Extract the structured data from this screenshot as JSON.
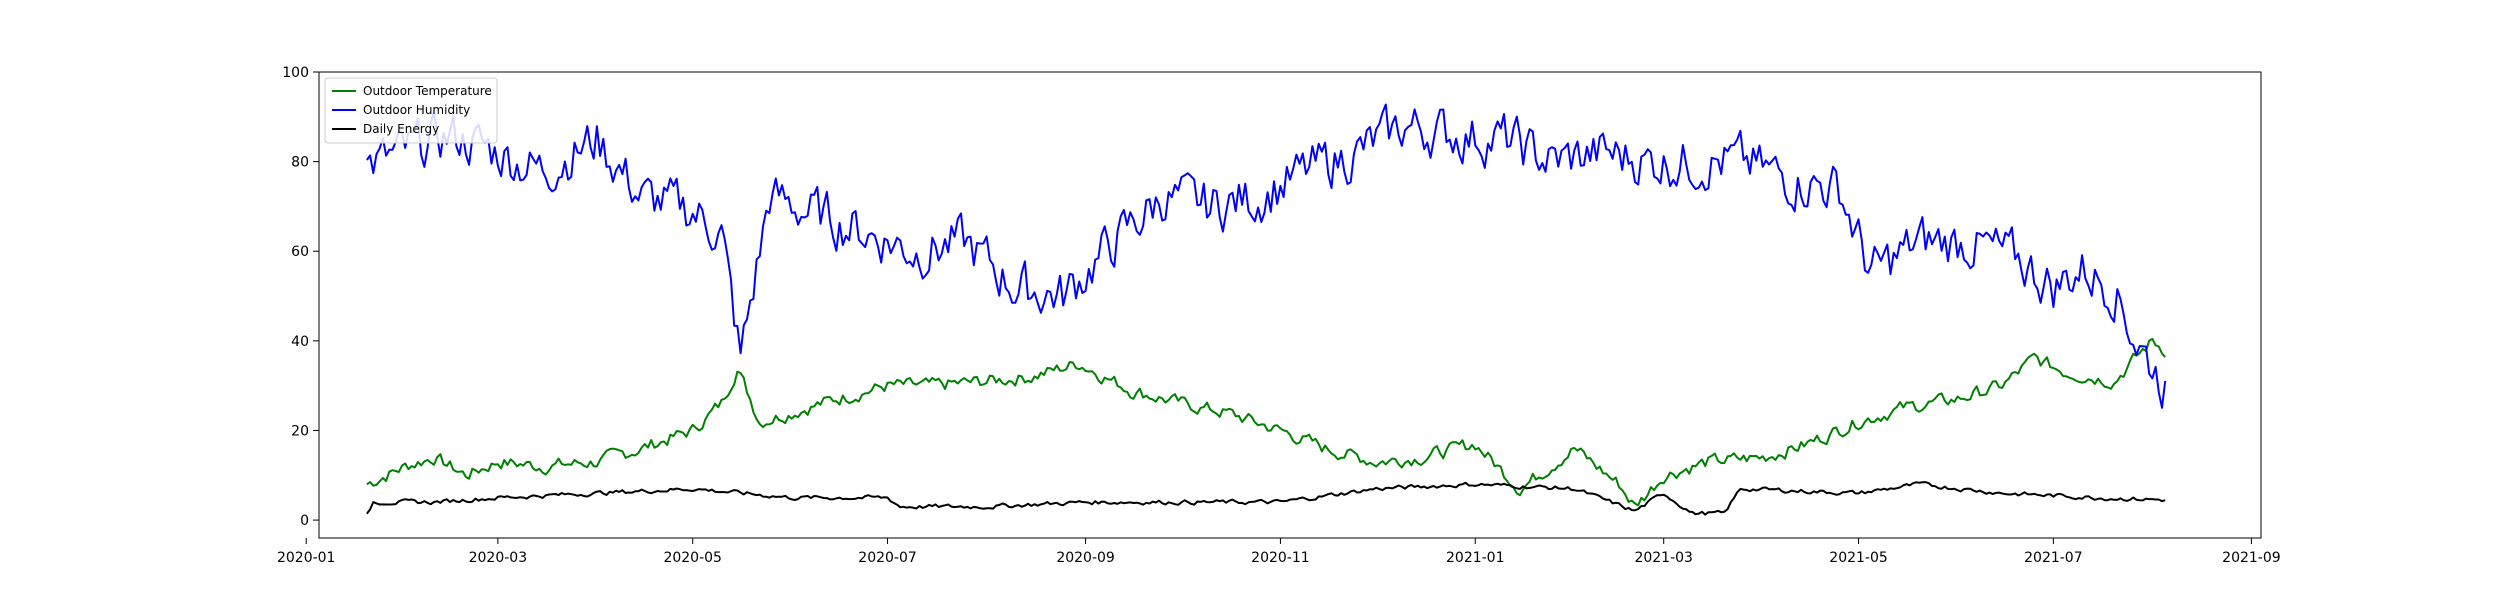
{
  "chart_data": {
    "type": "line",
    "title": "",
    "xlabel": "",
    "ylabel": "",
    "grid": false,
    "legend_placement": "top-left",
    "xlim": [
      "2020-01-05",
      "2021-09-04"
    ],
    "ylim": [
      -4,
      100
    ],
    "x_ticks": [
      "2020-01",
      "2020-03",
      "2020-05",
      "2020-07",
      "2020-09",
      "2020-11",
      "2021-01",
      "2021-03",
      "2021-05",
      "2021-07",
      "2021-09"
    ],
    "y_ticks": [
      "0",
      "20",
      "40",
      "60",
      "80",
      "100"
    ],
    "x_start": "2020-01-20",
    "x_end": "2021-08-05",
    "series": [
      {
        "name": "Outdoor Temperature",
        "color": "#008000",
        "points": [
          [
            "2020-01-20",
            8
          ],
          [
            "2020-02-01",
            12
          ],
          [
            "2020-02-10",
            14
          ],
          [
            "2020-02-20",
            10
          ],
          [
            "2020-03-01",
            13
          ],
          [
            "2020-03-15",
            12
          ],
          [
            "2020-04-01",
            13
          ],
          [
            "2020-04-15",
            16
          ],
          [
            "2020-05-01",
            20
          ],
          [
            "2020-05-10",
            26
          ],
          [
            "2020-05-15",
            34
          ],
          [
            "2020-05-22",
            22
          ],
          [
            "2020-06-01",
            24
          ],
          [
            "2020-06-15",
            27
          ],
          [
            "2020-07-01",
            30
          ],
          [
            "2020-07-15",
            30
          ],
          [
            "2020-08-01",
            31
          ],
          [
            "2020-08-15",
            32
          ],
          [
            "2020-08-30",
            35
          ],
          [
            "2020-09-15",
            29
          ],
          [
            "2020-10-01",
            26
          ],
          [
            "2020-10-15",
            24
          ],
          [
            "2020-11-01",
            20
          ],
          [
            "2020-11-15",
            16
          ],
          [
            "2020-12-01",
            13
          ],
          [
            "2020-12-15",
            14
          ],
          [
            "2021-01-01",
            17
          ],
          [
            "2021-01-15",
            7
          ],
          [
            "2021-02-01",
            16
          ],
          [
            "2021-02-15",
            8
          ],
          [
            "2021-02-20",
            3
          ],
          [
            "2021-03-01",
            10
          ],
          [
            "2021-03-15",
            13
          ],
          [
            "2021-04-01",
            14
          ],
          [
            "2021-04-15",
            17
          ],
          [
            "2021-05-01",
            22
          ],
          [
            "2021-05-15",
            25
          ],
          [
            "2021-06-01",
            27
          ],
          [
            "2021-06-15",
            30
          ],
          [
            "2021-06-25",
            36
          ],
          [
            "2021-07-05",
            33
          ],
          [
            "2021-07-20",
            31
          ],
          [
            "2021-08-01",
            40
          ],
          [
            "2021-08-05",
            38
          ]
        ],
        "amplitude": 2.5
      },
      {
        "name": "Outdoor Humidity",
        "color": "#0000ff",
        "points": [
          [
            "2020-01-20",
            79
          ],
          [
            "2020-02-01",
            82
          ],
          [
            "2020-02-15",
            86
          ],
          [
            "2020-03-01",
            82
          ],
          [
            "2020-03-15",
            78
          ],
          [
            "2020-04-01",
            85
          ],
          [
            "2020-04-15",
            72
          ],
          [
            "2020-05-01",
            69
          ],
          [
            "2020-05-10",
            64
          ],
          [
            "2020-05-16",
            36
          ],
          [
            "2020-05-25",
            72
          ],
          [
            "2020-06-10",
            68
          ],
          [
            "2020-06-25",
            64
          ],
          [
            "2020-07-10",
            60
          ],
          [
            "2020-07-25",
            62
          ],
          [
            "2020-08-10",
            52
          ],
          [
            "2020-08-25",
            50
          ],
          [
            "2020-09-10",
            62
          ],
          [
            "2020-09-25",
            72
          ],
          [
            "2020-10-10",
            70
          ],
          [
            "2020-10-25",
            72
          ],
          [
            "2020-11-10",
            78
          ],
          [
            "2020-11-25",
            82
          ],
          [
            "2020-12-10",
            88
          ],
          [
            "2020-12-25",
            86
          ],
          [
            "2021-01-10",
            85
          ],
          [
            "2021-01-25",
            80
          ],
          [
            "2021-02-10",
            82
          ],
          [
            "2021-02-25",
            80
          ],
          [
            "2021-03-10",
            80
          ],
          [
            "2021-03-25",
            80
          ],
          [
            "2021-04-10",
            76
          ],
          [
            "2021-04-25",
            74
          ],
          [
            "2021-05-05",
            55
          ],
          [
            "2021-05-20",
            62
          ],
          [
            "2021-06-05",
            62
          ],
          [
            "2021-06-20",
            58
          ],
          [
            "2021-07-01",
            52
          ],
          [
            "2021-07-10",
            56
          ],
          [
            "2021-07-20",
            52
          ],
          [
            "2021-07-27",
            40
          ],
          [
            "2021-08-05",
            30
          ]
        ],
        "amplitude": 9
      },
      {
        "name": "Daily Energy",
        "color": "#000000",
        "points": [
          [
            "2020-01-20",
            1
          ],
          [
            "2020-01-22",
            4
          ],
          [
            "2020-02-10",
            4
          ],
          [
            "2020-03-01",
            5
          ],
          [
            "2020-04-01",
            6
          ],
          [
            "2020-05-01",
            7
          ],
          [
            "2020-06-01",
            5
          ],
          [
            "2020-07-01",
            5
          ],
          [
            "2020-07-05",
            3
          ],
          [
            "2020-08-01",
            3
          ],
          [
            "2020-09-01",
            4
          ],
          [
            "2020-10-01",
            4
          ],
          [
            "2020-11-01",
            4
          ],
          [
            "2020-12-01",
            7
          ],
          [
            "2021-01-01",
            8
          ],
          [
            "2021-02-01",
            7
          ],
          [
            "2021-02-20",
            2
          ],
          [
            "2021-03-01",
            6
          ],
          [
            "2021-03-10",
            1.5
          ],
          [
            "2021-03-20",
            1.5
          ],
          [
            "2021-03-25",
            7
          ],
          [
            "2021-05-01",
            6
          ],
          [
            "2021-05-20",
            8
          ],
          [
            "2021-06-15",
            6
          ],
          [
            "2021-07-15",
            5
          ],
          [
            "2021-08-05",
            4.5
          ]
        ],
        "amplitude": 0.8
      }
    ]
  }
}
